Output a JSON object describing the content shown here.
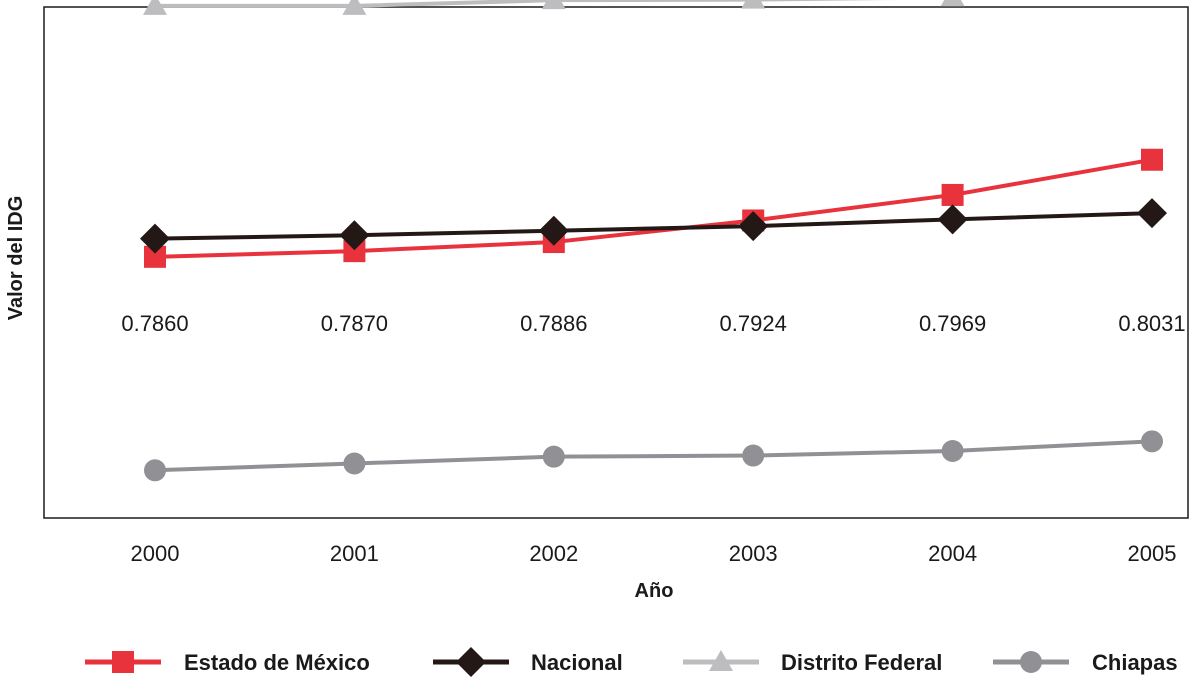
{
  "chart_data": {
    "type": "line",
    "xlabel": "Año",
    "ylabel": "Valor del IDG",
    "categories": [
      "2000",
      "2001",
      "2002",
      "2003",
      "2004",
      "2005"
    ],
    "ylim": [
      0.74,
      0.83
    ],
    "grid": false,
    "legend_position": "bottom",
    "series": [
      {
        "name": "Estado de México",
        "color": "#e8323c",
        "marker": "square",
        "values": [
          0.786,
          0.787,
          0.7886,
          0.7924,
          0.7969,
          0.8031
        ],
        "data_labels": [
          "0.7860",
          "0.7870",
          "0.7886",
          "0.7924",
          "0.7969",
          "0.8031"
        ]
      },
      {
        "name": "Nacional",
        "color": "#231815",
        "marker": "diamond",
        "values": [
          0.7892,
          0.7898,
          0.7906,
          0.7914,
          0.7926,
          0.7937
        ]
      },
      {
        "name": "Distrito Federal",
        "color": "#bdbdbf",
        "marker": "triangle",
        "values": [
          0.8302,
          0.8302,
          0.8312,
          0.8313,
          0.8317,
          0.833
        ]
      },
      {
        "name": "Chiapas",
        "color": "#919195",
        "marker": "circle",
        "values": [
          0.7484,
          0.7496,
          0.7508,
          0.751,
          0.7518,
          0.7535
        ]
      }
    ]
  }
}
